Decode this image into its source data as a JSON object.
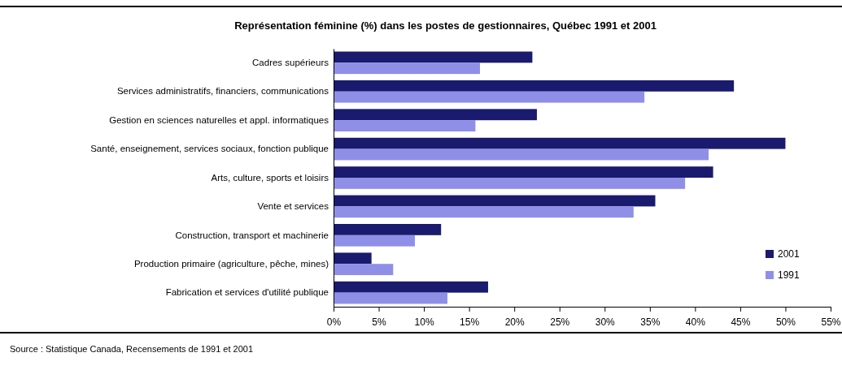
{
  "chart_data": {
    "type": "bar",
    "orientation": "horizontal",
    "title": "Représentation féminine (%) dans les postes de gestionnaires, Québec 1991 et 2001",
    "categories": [
      "Cadres supérieurs",
      "Services administratifs, financiers, communications",
      "Gestion en sciences naturelles et appl. informatiques",
      "Santé, enseignement, services sociaux, fonction publique",
      "Arts, culture, sports et loisirs",
      "Vente et services",
      "Construction, transport et machinerie",
      "Production primaire (agriculture, pêche, mines)",
      "Fabrication et services d'utilité publique"
    ],
    "series": [
      {
        "name": "2001",
        "color": "#1a1a6e",
        "values": [
          22.0,
          44.3,
          22.5,
          50.0,
          42.0,
          35.6,
          11.9,
          4.2,
          17.1
        ]
      },
      {
        "name": "1991",
        "color": "#8f8fe8",
        "values": [
          16.2,
          34.4,
          15.7,
          41.5,
          38.9,
          33.2,
          9.0,
          6.6,
          12.6
        ]
      }
    ],
    "xlim": [
      0,
      55
    ],
    "xticks": [
      {
        "value": 0,
        "label": "0%"
      },
      {
        "value": 5,
        "label": "5%"
      },
      {
        "value": 10,
        "label": "10%"
      },
      {
        "value": 15,
        "label": "15%"
      },
      {
        "value": 20,
        "label": "20%"
      },
      {
        "value": 25,
        "label": "25%"
      },
      {
        "value": 30,
        "label": "30%"
      },
      {
        "value": 35,
        "label": "35%"
      },
      {
        "value": 40,
        "label": "40%"
      },
      {
        "value": 45,
        "label": "45%"
      },
      {
        "value": 50,
        "label": "50%"
      },
      {
        "value": 55,
        "label": "55%"
      }
    ],
    "legend": "bottom right",
    "grid": false,
    "annotations": [
      "Source : Statistique Canada, Recensements de 1991 et 2001"
    ]
  }
}
